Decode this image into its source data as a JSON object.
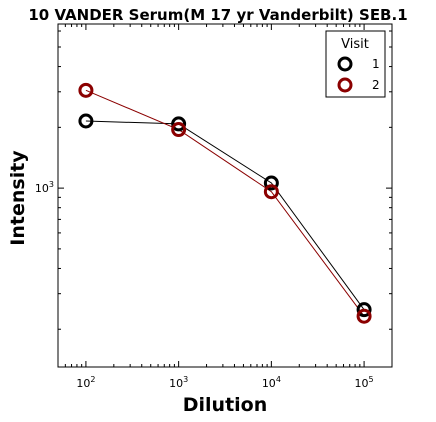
{
  "chart_data": {
    "type": "line",
    "title": "10 VANDER Serum(M 17 yr Vanderbilt) SEB.1",
    "xlabel": "Dilution",
    "ylabel": "Intensity",
    "x_scale": "log",
    "y_scale": "log",
    "xlim": [
      50,
      200000
    ],
    "ylim": [
      130,
      6500
    ],
    "x_ticks": [
      {
        "value": 100,
        "base": "10",
        "exp": "2"
      },
      {
        "value": 1000,
        "base": "10",
        "exp": "3"
      },
      {
        "value": 10000,
        "base": "10",
        "exp": "4"
      },
      {
        "value": 100000,
        "base": "10",
        "exp": "5"
      }
    ],
    "y_ticks": [
      {
        "value": 1000,
        "base": "10",
        "exp": "3"
      }
    ],
    "grid": false,
    "legend": {
      "title": "Visit",
      "placement": "top-right"
    },
    "series": [
      {
        "name": "1",
        "color": "#000000",
        "x": [
          100,
          1000,
          10000,
          100000
        ],
        "y": [
          2150,
          2080,
          1060,
          250
        ]
      },
      {
        "name": "2",
        "color": "#8b0000",
        "x": [
          100,
          1000,
          10000,
          100000
        ],
        "y": [
          3050,
          1950,
          960,
          232
        ]
      }
    ]
  }
}
